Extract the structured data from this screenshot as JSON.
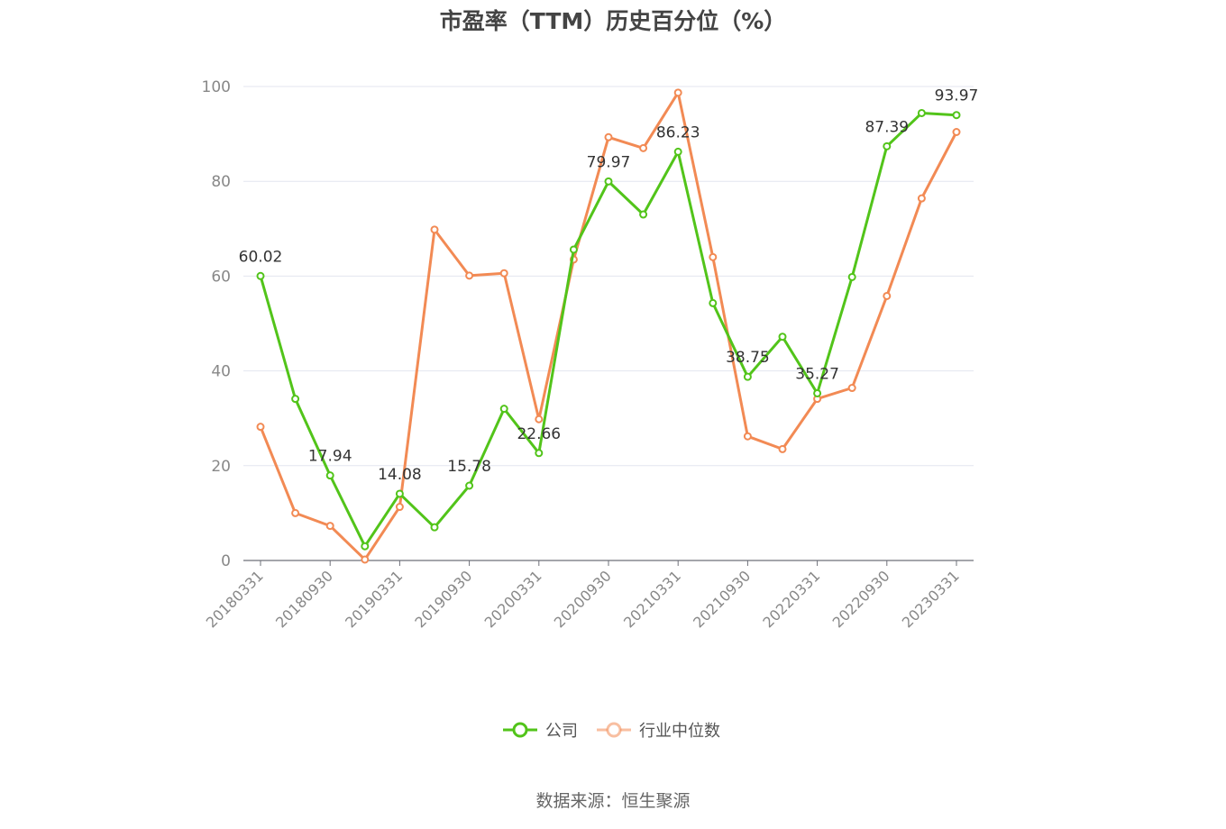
{
  "chart_data": {
    "type": "line",
    "title": "市盈率（TTM）历史百分位（%）",
    "xlabel": "",
    "ylabel": "",
    "ylim": [
      0,
      100
    ],
    "yticks": [
      "0",
      "20",
      "40",
      "60",
      "80",
      "100"
    ],
    "grid": true,
    "legend_position": "bottom",
    "x": [
      "20180331",
      "20180630",
      "20180930",
      "20181231",
      "20190331",
      "20190630",
      "20190930",
      "20191231",
      "20200331",
      "20200630",
      "20200930",
      "20201231",
      "20210331",
      "20210630",
      "20210930",
      "20211231",
      "20220331",
      "20220630",
      "20220930",
      "20221231",
      "20230331"
    ],
    "x_tick_labels": [
      "20180331",
      "20180930",
      "20190331",
      "20190930",
      "20200331",
      "20200930",
      "20210331",
      "20210930",
      "20220331",
      "20220930",
      "20230331"
    ],
    "series": [
      {
        "name": "公司",
        "color": "#52c41a",
        "values": [
          60.02,
          34.1,
          17.94,
          3.0,
          14.08,
          7.0,
          15.78,
          32.0,
          22.66,
          65.6,
          79.97,
          73.0,
          86.23,
          54.3,
          38.75,
          47.2,
          35.27,
          59.8,
          87.39,
          94.4,
          93.97
        ],
        "labels": {
          "0": "60.02",
          "2": "17.94",
          "4": "14.08",
          "6": "15.78",
          "8": "22.66",
          "10": "79.97",
          "12": "86.23",
          "14": "38.75",
          "16": "35.27",
          "18": "87.39",
          "20": "93.97"
        }
      },
      {
        "name": "行业中位数",
        "color": "#f28a54",
        "values": [
          28.2,
          10.0,
          7.3,
          0.2,
          11.3,
          69.8,
          60.1,
          60.6,
          29.8,
          63.5,
          89.3,
          87.0,
          98.7,
          64.0,
          26.2,
          23.5,
          34.1,
          36.4,
          55.8,
          76.4,
          90.4
        ]
      }
    ]
  },
  "footer": {
    "source": "数据来源：恒生聚源"
  }
}
